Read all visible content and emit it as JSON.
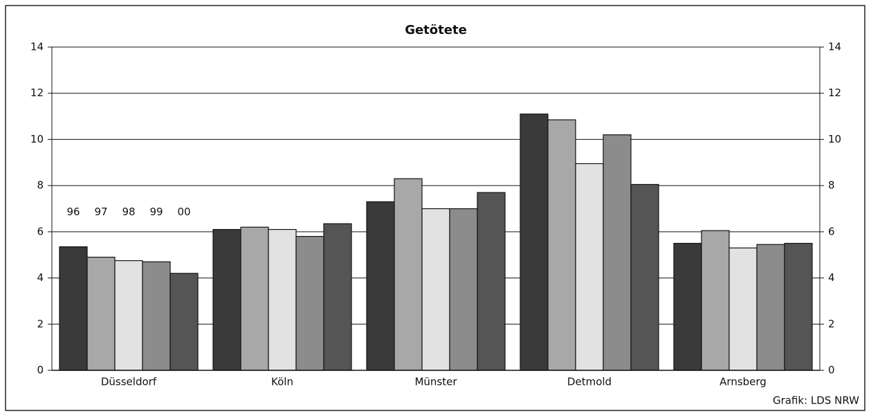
{
  "chart_data": {
    "type": "bar",
    "title": "Getötete",
    "categories": [
      "Düsseldorf",
      "Köln",
      "Münster",
      "Detmold",
      "Arnsberg"
    ],
    "series": [
      {
        "name": "96",
        "color": "#3a3a3a",
        "values": [
          5.35,
          6.1,
          7.3,
          11.1,
          5.5
        ]
      },
      {
        "name": "97",
        "color": "#a8a8a8",
        "values": [
          4.9,
          6.2,
          8.3,
          10.85,
          6.05
        ]
      },
      {
        "name": "98",
        "color": "#e2e2e2",
        "values": [
          4.75,
          6.1,
          7.0,
          8.95,
          5.3
        ]
      },
      {
        "name": "99",
        "color": "#8c8c8c",
        "values": [
          4.7,
          5.8,
          7.0,
          10.2,
          5.45
        ]
      },
      {
        "name": "00",
        "color": "#555555",
        "values": [
          4.2,
          6.35,
          7.7,
          8.05,
          5.5
        ]
      }
    ],
    "ylim": [
      0,
      14
    ],
    "yticks": [
      0,
      2,
      4,
      6,
      8,
      10,
      12,
      14
    ],
    "y2lim": [
      0,
      14
    ],
    "y2ticks": [
      0,
      2,
      4,
      6,
      8,
      10,
      12,
      14
    ],
    "grid": true,
    "source": "Grafik: LDS NRW"
  }
}
